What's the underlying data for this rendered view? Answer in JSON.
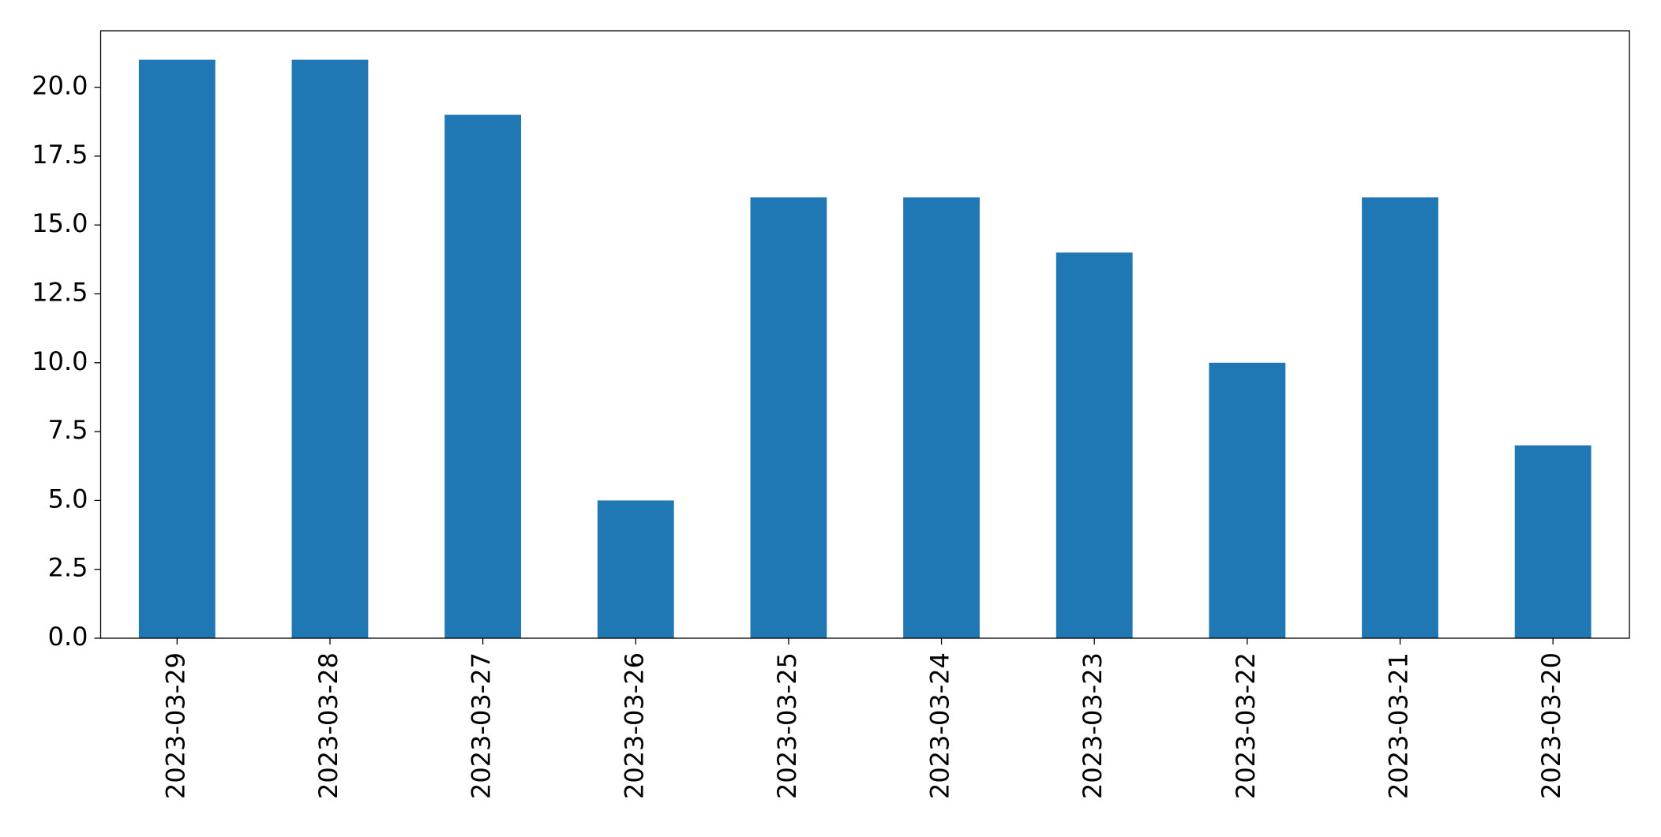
{
  "chart_data": {
    "type": "bar",
    "categories": [
      "2023-03-29",
      "2023-03-28",
      "2023-03-27",
      "2023-03-26",
      "2023-03-25",
      "2023-03-24",
      "2023-03-23",
      "2023-03-22",
      "2023-03-21",
      "2023-03-20"
    ],
    "values": [
      21,
      21,
      19,
      5,
      16,
      16,
      14,
      10,
      16,
      7
    ],
    "color": "#1f77b4",
    "ylim": [
      0,
      22.05
    ],
    "yticks": [
      {
        "value": 0,
        "label": "0.0"
      },
      2.5,
      {
        "value": 5,
        "label": "5.0"
      },
      7.5,
      {
        "value": 10,
        "label": "10.0"
      },
      12.5,
      {
        "value": 15,
        "label": "15.0"
      },
      17.5,
      {
        "value": 20,
        "label": "20.0"
      }
    ],
    "grid": false
  }
}
